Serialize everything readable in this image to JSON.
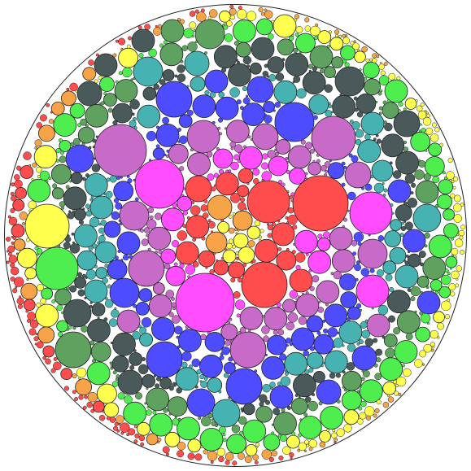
{
  "palette": {
    "background": "#ffffff",
    "stroke": "#222222",
    "red": "#ff4d4d",
    "orange": "#f7a448",
    "yellow": "#ffff4d",
    "magenta": "#ff4dff",
    "orchid": "#c86ac8",
    "blue": "#4d4dff",
    "teal": "#47b2b2",
    "darkslate": "#4a5a5a",
    "green": "#4dee4d",
    "fern": "#5fa25f"
  },
  "ring_order_inner_to_outer": [
    "orange",
    "yellow",
    "red",
    "magenta",
    "orchid",
    "blue",
    "teal",
    "darkslate",
    "fern",
    "green",
    "yellow",
    "orange",
    "red"
  ]
}
